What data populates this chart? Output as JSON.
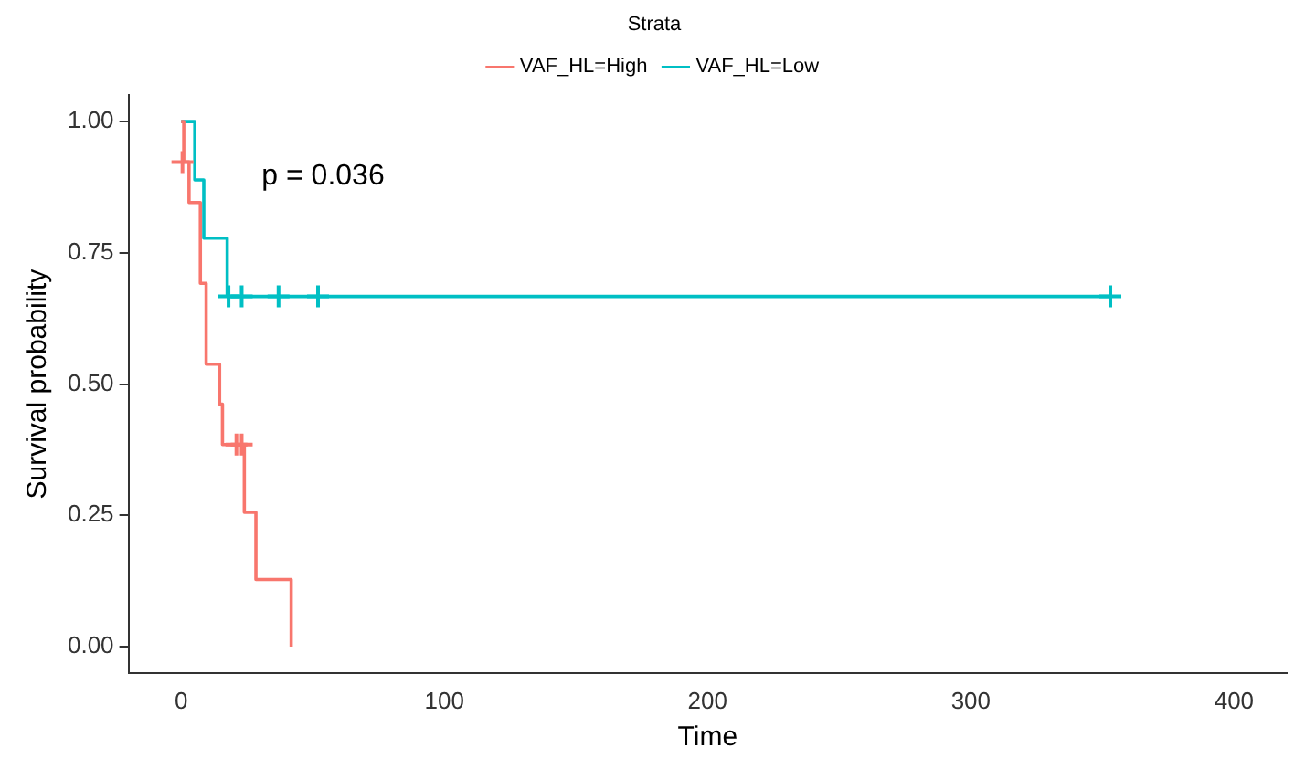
{
  "chart_data": {
    "type": "step",
    "xlabel": "Time",
    "ylabel": "Survival probability",
    "legend_title": "Strata",
    "legend": "top",
    "grid": false,
    "line_style": "solid",
    "xlim": [
      -20,
      420
    ],
    "xticks": [
      0,
      100,
      200,
      300,
      400
    ],
    "ylim": [
      -0.05,
      1.05
    ],
    "yticks": [
      {
        "value": 0,
        "label": "0.00"
      },
      {
        "value": 0.25,
        "label": "0.25"
      },
      {
        "value": 0.5,
        "label": "0.50"
      },
      {
        "value": 0.75,
        "label": "0.75"
      },
      {
        "value": 1,
        "label": "1.00"
      }
    ],
    "annotations": [
      "p = 0.036"
    ],
    "series": [
      {
        "name": "VAF_HL=High",
        "color": "#f8766d",
        "marker": "none",
        "x": [
          0,
          1,
          3,
          7.3,
          9.5,
          14.6,
          15.7,
          24,
          28.4,
          41.8
        ],
        "values": [
          1,
          0.923,
          0.846,
          0.692,
          0.538,
          0.462,
          0.385,
          0.256,
          0.128,
          0
        ]
      },
      {
        "name": "VAF_HL=Low",
        "color": "#00bfc4",
        "marker": "none",
        "x": [
          0,
          5.2,
          8.6,
          17.5,
          353
        ],
        "values": [
          1,
          0.889,
          0.778,
          0.667,
          0.667
        ]
      },
      {
        "type": "scatter",
        "color": "#f8766d",
        "marker": "cross",
        "x": [
          0.5,
          21,
          23
        ],
        "values": [
          0.923,
          0.385,
          0.385
        ]
      },
      {
        "type": "scatter",
        "color": "#00bfc4",
        "marker": "cross",
        "x": [
          18,
          23,
          37,
          52,
          353
        ],
        "values": [
          0.667,
          0.667,
          0.667,
          0.667,
          0.667
        ]
      }
    ]
  }
}
